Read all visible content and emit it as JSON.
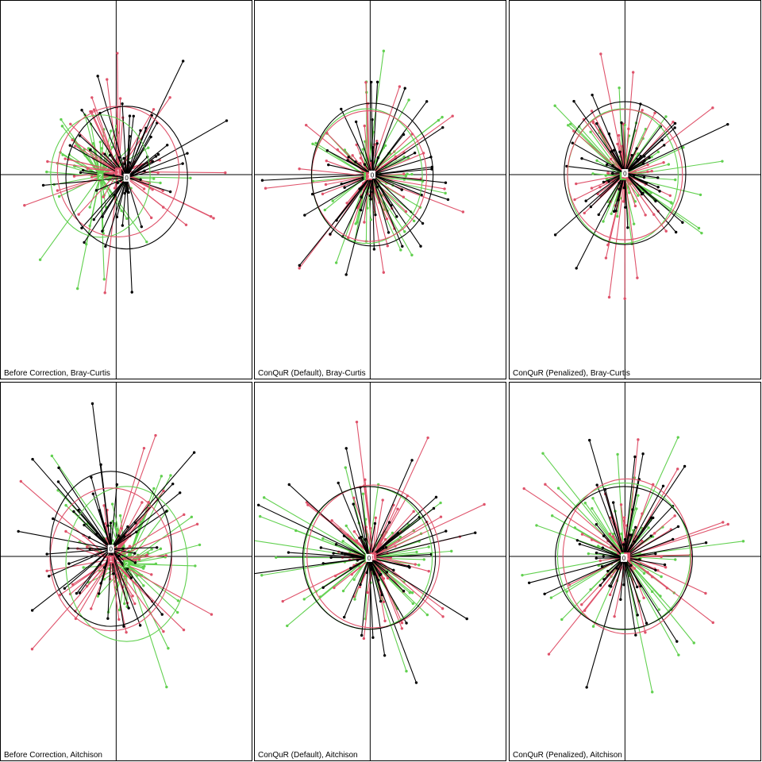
{
  "colors": {
    "batch_0": "#000000",
    "batch_1": "#df536b",
    "batch_2": "#61d04f",
    "axis": "#000000"
  },
  "chart_data": [
    {
      "type": "scatter",
      "title": "Before Correction, Bray-Curtis",
      "xlim": [
        -1,
        1
      ],
      "ylim": [
        -1,
        1
      ],
      "grid": false,
      "batches": [
        {
          "label": "0",
          "color": "#000000",
          "centroid": [
            0.1,
            -0.02
          ],
          "radius": [
            0.55,
            0.35
          ],
          "n": 55,
          "seed": 11
        },
        {
          "label": "1",
          "color": "#df536b",
          "centroid": [
            0.02,
            0.02
          ],
          "radius": [
            0.55,
            0.32
          ],
          "n": 55,
          "seed": 23
        },
        {
          "label": "2",
          "color": "#61d04f",
          "centroid": [
            -0.15,
            -0.01
          ],
          "radius": [
            0.45,
            0.3
          ],
          "n": 60,
          "seed": 37
        }
      ]
    },
    {
      "type": "scatter",
      "title": "ConQuR (Default), Bray-Curtis",
      "xlim": [
        -1,
        1
      ],
      "ylim": [
        -1,
        1
      ],
      "grid": false,
      "batches": [
        {
          "label": "0",
          "color": "#000000",
          "centroid": [
            0.02,
            0.0
          ],
          "radius": [
            0.55,
            0.35
          ],
          "n": 55,
          "seed": 41
        },
        {
          "label": "1",
          "color": "#df536b",
          "centroid": [
            -0.01,
            -0.01
          ],
          "radius": [
            0.52,
            0.32
          ],
          "n": 55,
          "seed": 53
        },
        {
          "label": "2",
          "color": "#61d04f",
          "centroid": [
            -0.03,
            -0.01
          ],
          "radius": [
            0.5,
            0.33
          ],
          "n": 60,
          "seed": 67
        }
      ]
    },
    {
      "type": "scatter",
      "title": "ConQuR (Penalized), Bray-Curtis",
      "xlim": [
        -1,
        1
      ],
      "ylim": [
        -1,
        1
      ],
      "grid": false,
      "batches": [
        {
          "label": "0",
          "color": "#000000",
          "centroid": [
            0.0,
            0.01
          ],
          "radius": [
            0.55,
            0.35
          ],
          "n": 55,
          "seed": 71
        },
        {
          "label": "1",
          "color": "#df536b",
          "centroid": [
            0.0,
            0.0
          ],
          "radius": [
            0.52,
            0.32
          ],
          "n": 55,
          "seed": 83
        },
        {
          "label": "2",
          "color": "#61d04f",
          "centroid": [
            -0.02,
            -0.01
          ],
          "radius": [
            0.5,
            0.33
          ],
          "n": 60,
          "seed": 97
        }
      ]
    },
    {
      "type": "scatter",
      "title": "Before Correction, Aitchison",
      "xlim": [
        -1,
        1
      ],
      "ylim": [
        -1,
        1
      ],
      "grid": false,
      "batches": [
        {
          "label": "0",
          "color": "#000000",
          "centroid": [
            -0.05,
            0.05
          ],
          "radius": [
            0.55,
            0.38
          ],
          "n": 55,
          "seed": 101
        },
        {
          "label": "1",
          "color": "#df536b",
          "centroid": [
            -0.05,
            -0.02
          ],
          "radius": [
            0.55,
            0.35
          ],
          "n": 55,
          "seed": 113
        },
        {
          "label": "2",
          "color": "#61d04f",
          "centroid": [
            0.1,
            -0.05
          ],
          "radius": [
            0.55,
            0.38
          ],
          "n": 60,
          "seed": 127
        }
      ]
    },
    {
      "type": "scatter",
      "title": "ConQuR (Default), Aitchison",
      "xlim": [
        -1,
        1
      ],
      "ylim": [
        -1,
        1
      ],
      "grid": false,
      "batches": [
        {
          "label": "0",
          "color": "#000000",
          "centroid": [
            -0.01,
            -0.01
          ],
          "radius": [
            0.6,
            0.35
          ],
          "n": 55,
          "seed": 131
        },
        {
          "label": "1",
          "color": "#df536b",
          "centroid": [
            0.03,
            0.0
          ],
          "radius": [
            0.6,
            0.35
          ],
          "n": 55,
          "seed": 149
        },
        {
          "label": "2",
          "color": "#61d04f",
          "centroid": [
            -0.02,
            -0.01
          ],
          "radius": [
            0.58,
            0.35
          ],
          "n": 60,
          "seed": 157
        }
      ]
    },
    {
      "type": "scatter",
      "title": "ConQuR (Penalized), Aitchison",
      "xlim": [
        -1,
        1
      ],
      "ylim": [
        -1,
        1
      ],
      "grid": false,
      "batches": [
        {
          "label": "0",
          "color": "#000000",
          "centroid": [
            -0.01,
            -0.01
          ],
          "radius": [
            0.62,
            0.35
          ],
          "n": 55,
          "seed": 163
        },
        {
          "label": "1",
          "color": "#df536b",
          "centroid": [
            0.02,
            0.0
          ],
          "radius": [
            0.58,
            0.38
          ],
          "n": 55,
          "seed": 173
        },
        {
          "label": "2",
          "color": "#61d04f",
          "centroid": [
            -0.01,
            0.0
          ],
          "radius": [
            0.6,
            0.36
          ],
          "n": 60,
          "seed": 181
        }
      ]
    }
  ]
}
